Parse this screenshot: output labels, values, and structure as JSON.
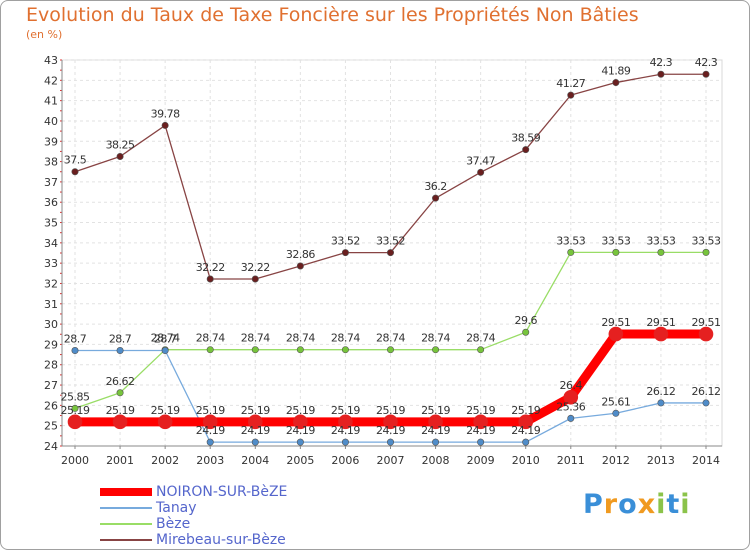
{
  "chart_data": {
    "type": "line",
    "title": "Evolution du Taux de Taxe Foncière sur les Propriétés Non Bâties",
    "subtitle": "(en %)",
    "x": [
      2000,
      2001,
      2002,
      2003,
      2004,
      2005,
      2006,
      2007,
      2008,
      2009,
      2010,
      2011,
      2012,
      2013,
      2014
    ],
    "ylim": [
      24,
      43
    ],
    "yticks": [
      24,
      25,
      26,
      27,
      28,
      29,
      30,
      31,
      32,
      33,
      34,
      35,
      36,
      37,
      38,
      39,
      40,
      41,
      42,
      43
    ],
    "grid": true,
    "series": [
      {
        "name": "NOIRON-SUR-BèZE",
        "color": "#ff0000",
        "marker": "#e52020",
        "width": 9,
        "values": [
          25.19,
          25.19,
          25.19,
          25.19,
          25.19,
          25.19,
          25.19,
          25.19,
          25.19,
          25.19,
          25.19,
          26.4,
          29.51,
          29.51,
          29.51
        ],
        "labels": [
          "25.19",
          "25.19",
          "25.19",
          "25.19",
          "25.19",
          "25.19",
          "25.19",
          "25.19",
          "25.19",
          "25.19",
          "25.19",
          "26.4",
          "29.51",
          "29.51",
          "29.51"
        ]
      },
      {
        "name": "Tanay",
        "color": "#77aadd",
        "marker": "#4f8cc9",
        "width": 1.3,
        "values": [
          28.7,
          28.7,
          28.7,
          24.19,
          24.19,
          24.19,
          24.19,
          24.19,
          24.19,
          24.19,
          24.19,
          25.36,
          25.61,
          26.12,
          26.12
        ],
        "labels": [
          "28.7",
          "28.7",
          "28.7",
          "24.19",
          "24.19",
          "24.19",
          "24.19",
          "24.19",
          "24.19",
          "24.19",
          "24.19",
          "25.36",
          "25.61",
          "26.12",
          "26.12"
        ]
      },
      {
        "name": "Bèze",
        "color": "#99dd66",
        "marker": "#77c43c",
        "width": 1.3,
        "values": [
          25.85,
          26.62,
          28.74,
          28.74,
          28.74,
          28.74,
          28.74,
          28.74,
          28.74,
          28.74,
          29.6,
          33.53,
          33.53,
          33.53,
          33.53
        ],
        "labels": [
          "25.85",
          "26.62",
          "28.74",
          "28.74",
          "28.74",
          "28.74",
          "28.74",
          "28.74",
          "28.74",
          "28.74",
          "29.6",
          "33.53",
          "33.53",
          "33.53",
          "33.53"
        ]
      },
      {
        "name": "Mirebeau-sur-Bèze",
        "color": "#884444",
        "marker": "#6a1f1f",
        "width": 1.3,
        "values": [
          37.5,
          38.25,
          39.78,
          32.22,
          32.22,
          32.86,
          33.52,
          33.52,
          36.2,
          37.47,
          38.59,
          41.27,
          41.89,
          42.3,
          42.3
        ],
        "labels": [
          "37.5",
          "38.25",
          "39.78",
          "32.22",
          "32.22",
          "32.86",
          "33.52",
          "33.52",
          "36.2",
          "37.47",
          "38.59",
          "41.27",
          "41.89",
          "42.3",
          "42.3"
        ]
      }
    ]
  },
  "legend_items": [
    "NOIRON-SUR-BèZE",
    "Tanay",
    "Bèze",
    "Mirebeau-sur-Bèze"
  ],
  "brand": {
    "name": "Proxiti",
    "letters": [
      "P",
      "r",
      "o",
      "x",
      "i",
      "t",
      "i"
    ],
    "colors": [
      "#3a8fd8",
      "#f09a20",
      "#3a8fd8",
      "#f09a20",
      "#8bc34a",
      "#3a8fd8",
      "#8bc34a"
    ]
  }
}
